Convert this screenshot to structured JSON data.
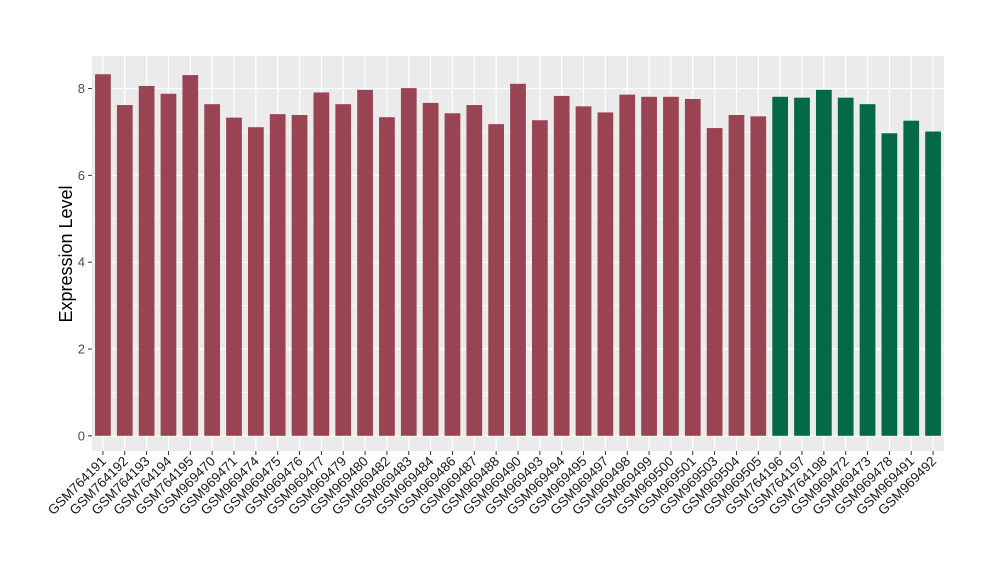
{
  "chart_data": {
    "type": "bar",
    "title": "",
    "xlabel": "",
    "ylabel": "Expression Level",
    "ylim": [
      -0.35,
      8.75
    ],
    "yticks": [
      0,
      2,
      4,
      6,
      8
    ],
    "grid": true,
    "background": "#ebebeb",
    "group_colors": {
      "a": "#9a4352",
      "b": "#046945"
    },
    "categories": [
      "GSM764191",
      "GSM764192",
      "GSM764193",
      "GSM764194",
      "GSM764195",
      "GSM969470",
      "GSM969471",
      "GSM969474",
      "GSM969475",
      "GSM969476",
      "GSM969477",
      "GSM969479",
      "GSM969480",
      "GSM969482",
      "GSM969483",
      "GSM969484",
      "GSM969486",
      "GSM969487",
      "GSM969488",
      "GSM969490",
      "GSM969493",
      "GSM969494",
      "GSM969495",
      "GSM969497",
      "GSM969498",
      "GSM969499",
      "GSM969500",
      "GSM969501",
      "GSM969503",
      "GSM969504",
      "GSM969505",
      "GSM764196",
      "GSM764197",
      "GSM764198",
      "GSM969472",
      "GSM969473",
      "GSM969478",
      "GSM969491",
      "GSM969492"
    ],
    "values": [
      8.33,
      7.62,
      8.06,
      7.88,
      8.31,
      7.64,
      7.33,
      7.11,
      7.41,
      7.39,
      7.91,
      7.64,
      7.97,
      7.34,
      8.01,
      7.67,
      7.43,
      7.62,
      7.18,
      8.11,
      7.27,
      7.83,
      7.59,
      7.45,
      7.86,
      7.81,
      7.81,
      7.76,
      7.09,
      7.39,
      7.36,
      7.81,
      7.79,
      7.97,
      7.79,
      7.64,
      6.97,
      7.26,
      7.01
    ],
    "groups": [
      "a",
      "a",
      "a",
      "a",
      "a",
      "a",
      "a",
      "a",
      "a",
      "a",
      "a",
      "a",
      "a",
      "a",
      "a",
      "a",
      "a",
      "a",
      "a",
      "a",
      "a",
      "a",
      "a",
      "a",
      "a",
      "a",
      "a",
      "a",
      "a",
      "a",
      "a",
      "b",
      "b",
      "b",
      "b",
      "b",
      "b",
      "b",
      "b"
    ]
  }
}
